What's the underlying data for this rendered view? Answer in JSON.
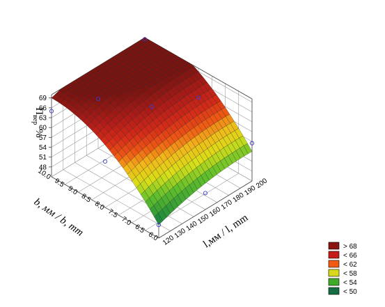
{
  "chart_data": {
    "type": "surface3d",
    "zlabel_main": "П",
    "zlabel_sub": "вер",
    "zlabel_unit": "%",
    "xlabel": "b, мм / b, mm",
    "ylabel": "l,мм / l, mm",
    "x_axis": {
      "var": "b",
      "range": [
        6.0,
        10.0
      ],
      "ticks": [
        "6.0",
        "6.5",
        "7.0",
        "7.5",
        "8.0",
        "8.5",
        "9.0",
        "9.5",
        "10.0"
      ]
    },
    "y_axis": {
      "var": "l",
      "range": [
        120,
        200
      ],
      "ticks": [
        "120",
        "130",
        "140",
        "150",
        "160",
        "170",
        "180",
        "190",
        "200"
      ]
    },
    "z_axis": {
      "range": [
        45,
        70
      ],
      "ticks": [
        "48",
        "51",
        "54",
        "57",
        "60",
        "63",
        "66",
        "69"
      ]
    },
    "observed_points": [
      {
        "b": 10.0,
        "l": 120,
        "z": 65
      },
      {
        "b": 6.0,
        "l": 120,
        "z": 49
      },
      {
        "b": 6.0,
        "l": 200,
        "z": 56.5
      },
      {
        "b": 10.0,
        "l": 200,
        "z": 69.5
      },
      {
        "b": 8.0,
        "l": 160,
        "z": 67
      },
      {
        "b": 10.0,
        "l": 160,
        "z": 60
      },
      {
        "b": 6.0,
        "l": 160,
        "z": 50
      },
      {
        "b": 8.0,
        "l": 120,
        "z": 59
      },
      {
        "b": 8.0,
        "l": 200,
        "z": 61
      }
    ],
    "legend": [
      {
        "label": "> 68",
        "color": "#8a1411"
      },
      {
        "label": "< 66",
        "color": "#c41d1a"
      },
      {
        "label": "< 62",
        "color": "#f25a14"
      },
      {
        "label": "< 58",
        "color": "#d8d81a"
      },
      {
        "label": "< 54",
        "color": "#3faa2c"
      },
      {
        "label": "< 50",
        "color": "#156d43"
      }
    ],
    "grid": true,
    "legend_position": "bottom-right"
  }
}
